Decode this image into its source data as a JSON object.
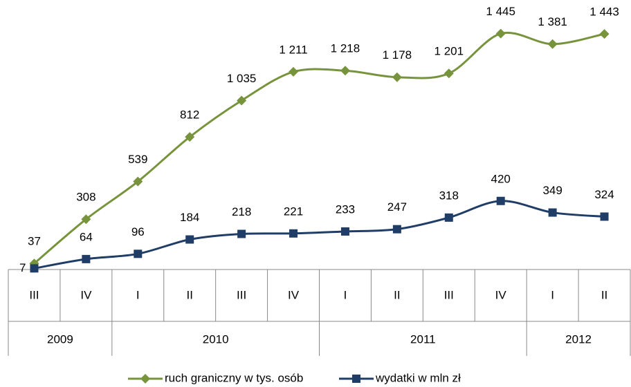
{
  "chart_data": {
    "type": "line",
    "categories": [
      "III",
      "IV",
      "I",
      "II",
      "III",
      "IV",
      "I",
      "II",
      "III",
      "IV",
      "I",
      "II"
    ],
    "years": [
      "2009",
      "2009",
      "2010",
      "2010",
      "2010",
      "2010",
      "2011",
      "2011",
      "2011",
      "2011",
      "2012",
      "2012"
    ],
    "series": [
      {
        "name": "ruch graniczny w tys. osób",
        "color": "#77933c",
        "marker": "diamond",
        "values": [
          37,
          308,
          539,
          812,
          1035,
          1211,
          1218,
          1178,
          1201,
          1445,
          1381,
          1443
        ],
        "value_labels": [
          "37",
          "308",
          "539",
          "812",
          "1 035",
          "1 211",
          "1 218",
          "1 178",
          "1 201",
          "1 445",
          "1 381",
          "1 443"
        ]
      },
      {
        "name": "wydatki w mln zł",
        "color": "#1f3d66",
        "marker": "square",
        "values": [
          7,
          64,
          96,
          184,
          218,
          221,
          233,
          247,
          318,
          420,
          349,
          324
        ]
      }
    ],
    "ylim": [
      0,
      1600
    ],
    "legend": "bottom"
  }
}
